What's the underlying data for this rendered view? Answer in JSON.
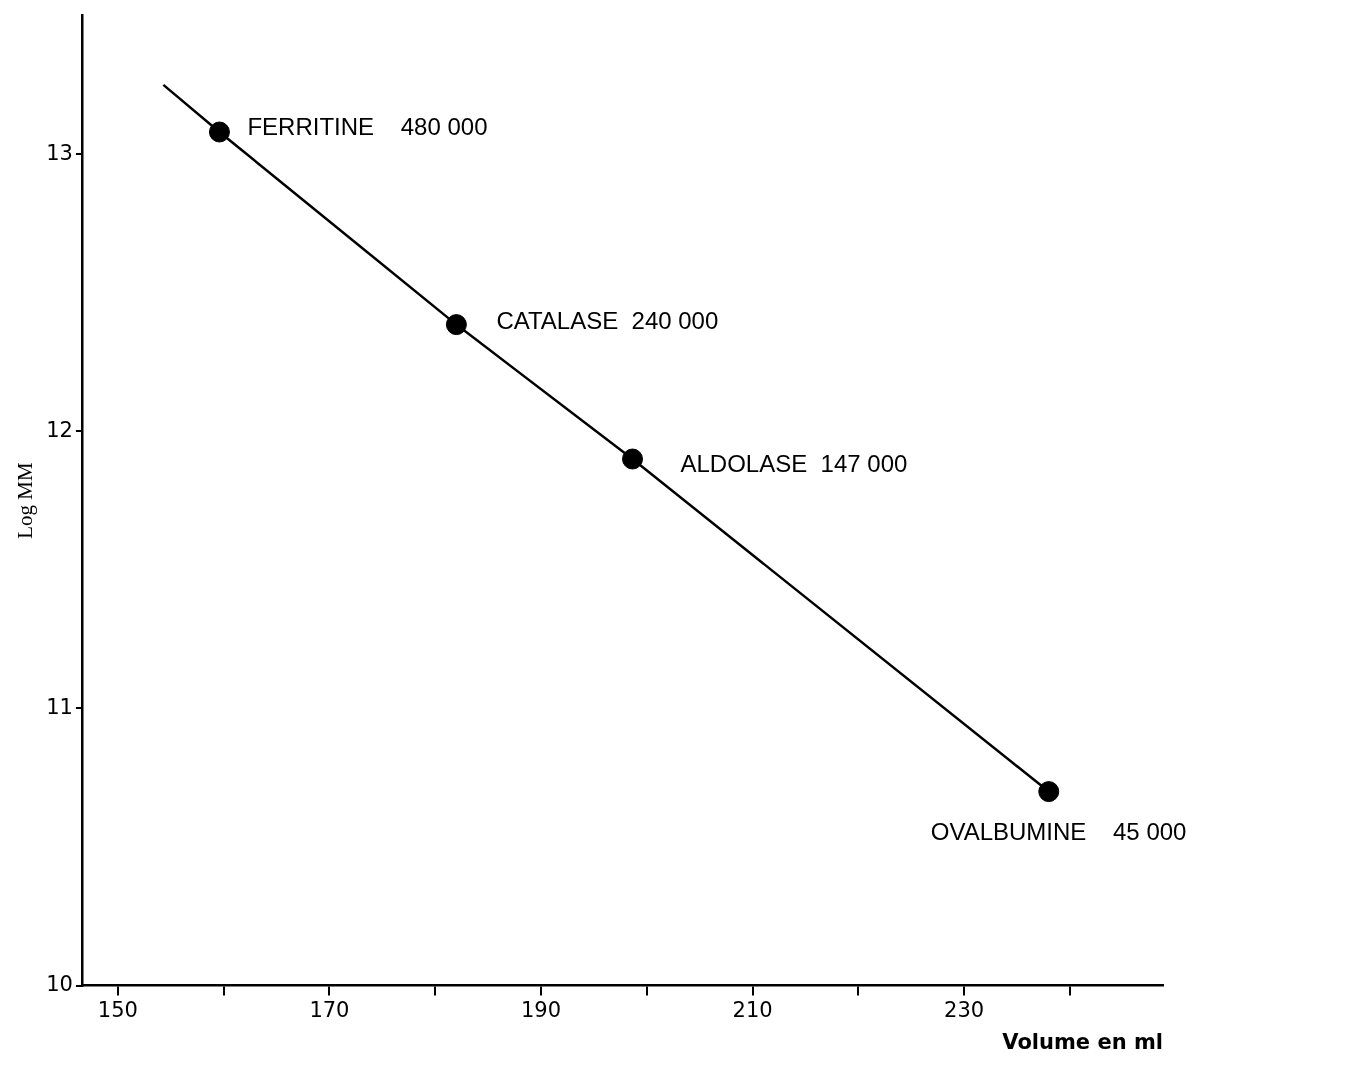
{
  "chart_data": {
    "type": "scatter",
    "xlabel": "Volume en ml",
    "ylabel": "Log MM",
    "xlim": [
      146.6,
      248.8
    ],
    "ylim": [
      10,
      13.5
    ],
    "xticks": [
      150,
      {
        "value": 160,
        "label": null
      },
      170,
      {
        "value": 180,
        "label": null
      },
      190,
      {
        "value": 200,
        "label": null
      },
      210,
      {
        "value": 220,
        "label": null
      },
      230,
      {
        "value": 240,
        "label": null
      }
    ],
    "yticks": [
      10,
      11,
      12,
      13
    ],
    "grid": false,
    "legend": false,
    "series": [
      {
        "type": "line",
        "marker": "none",
        "color": "#000000",
        "x": [
          154.3,
          159.6,
          182.0,
          198.65,
          238.0
        ],
        "values": [
          13.25,
          13.08,
          12.385,
          11.9,
          10.7
        ]
      },
      {
        "type": "scatter",
        "marker": "circle",
        "color": "#000000",
        "x": [
          159.6,
          182.0,
          198.65,
          238.0
        ],
        "values": [
          13.08,
          12.385,
          11.9,
          10.7
        ]
      }
    ],
    "annotations": [
      {
        "text": "FERRITINE    480 000",
        "x": 159.6,
        "y": 13.08
      },
      {
        "text": "CATALASE  240 000",
        "x": 182.0,
        "y": 12.385
      },
      {
        "text": "ALDOLASE  147 000",
        "x": 198.65,
        "y": 11.9
      },
      {
        "text": "OVALBUMINE    45 000",
        "x": 238.0,
        "y": 10.7
      }
    ]
  }
}
